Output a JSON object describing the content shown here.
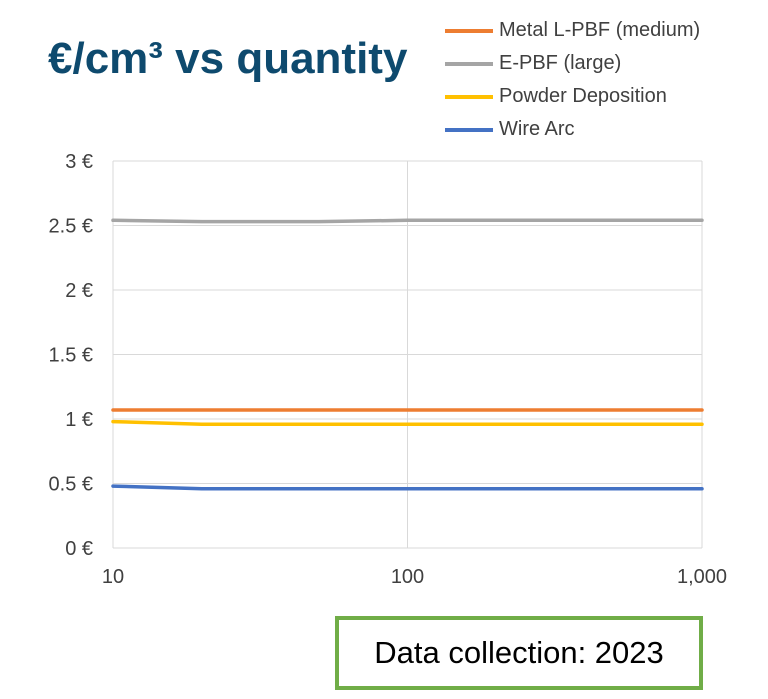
{
  "title": "€/cm³ vs quantity",
  "note": "Data collection: 2023",
  "chart_data": {
    "type": "line",
    "title": "€/cm³ vs quantity",
    "xlabel": "",
    "ylabel": "",
    "x_scale": "log",
    "xlim": [
      10,
      1000
    ],
    "ylim": [
      0,
      3
    ],
    "grid": true,
    "legend_position": "top-right",
    "x_ticks": [
      10,
      100,
      1000
    ],
    "x_tick_labels": [
      "10",
      "100",
      "1,000"
    ],
    "y_ticks": [
      0,
      0.5,
      1,
      1.5,
      2,
      2.5,
      3
    ],
    "y_tick_labels": [
      "0 €",
      "0.5 €",
      "1 €",
      "1.5 €",
      "2 €",
      "2.5 €",
      "3 €"
    ],
    "series": [
      {
        "name": "Metal L-PBF (medium)",
        "color": "#ed7d31",
        "x": [
          10,
          20,
          50,
          100,
          200,
          500,
          1000
        ],
        "y": [
          1.07,
          1.07,
          1.07,
          1.07,
          1.07,
          1.07,
          1.07
        ]
      },
      {
        "name": "E-PBF (large)",
        "color": "#a5a5a5",
        "x": [
          10,
          20,
          50,
          100,
          200,
          500,
          1000
        ],
        "y": [
          2.54,
          2.53,
          2.53,
          2.54,
          2.54,
          2.54,
          2.54
        ]
      },
      {
        "name": "Powder Deposition",
        "color": "#ffc000",
        "x": [
          10,
          20,
          50,
          100,
          200,
          500,
          1000
        ],
        "y": [
          0.98,
          0.96,
          0.96,
          0.96,
          0.96,
          0.96,
          0.96
        ]
      },
      {
        "name": "Wire Arc",
        "color": "#4472c4",
        "x": [
          10,
          20,
          50,
          100,
          200,
          500,
          1000
        ],
        "y": [
          0.48,
          0.46,
          0.46,
          0.46,
          0.46,
          0.46,
          0.46
        ]
      }
    ]
  }
}
